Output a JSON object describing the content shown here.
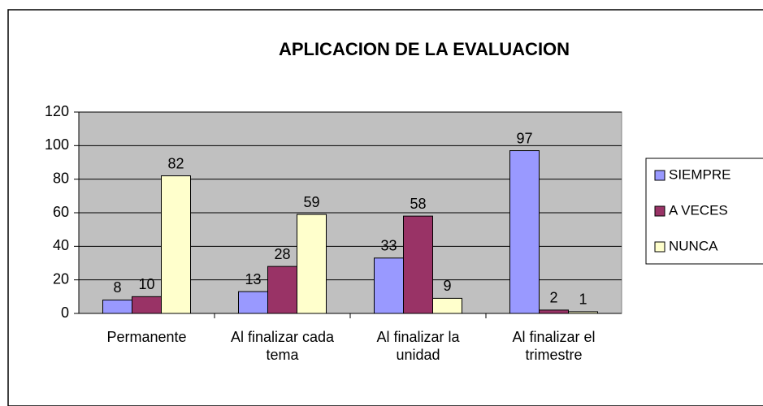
{
  "chart_data": {
    "type": "bar",
    "title": "APLICACION  DE LA EVALUACION",
    "categories": [
      "Permanente",
      "Al finalizar cada tema",
      "Al finalizar la unidad",
      "Al finalizar el trimestre"
    ],
    "series": [
      {
        "name": "SIEMPRE",
        "color": "#9999ff",
        "values": [
          8,
          13,
          33,
          97
        ]
      },
      {
        "name": "A VECES",
        "color": "#993366",
        "values": [
          10,
          28,
          58,
          2
        ]
      },
      {
        "name": "NUNCA",
        "color": "#ffffcc",
        "values": [
          82,
          59,
          9,
          1
        ]
      }
    ],
    "ylim": [
      0,
      120
    ],
    "yticks": [
      0,
      20,
      40,
      60,
      80,
      100,
      120
    ],
    "grid": true,
    "legend": "right"
  }
}
